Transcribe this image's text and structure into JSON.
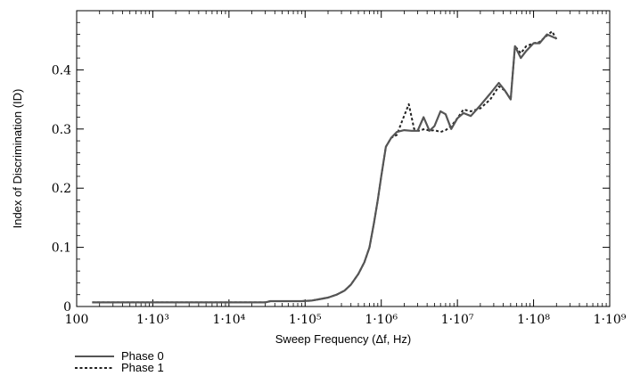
{
  "chart_data": {
    "type": "line",
    "xscale": "log",
    "xlim": [
      100,
      1000000000
    ],
    "ylim": [
      0,
      0.5
    ],
    "xlabel": "Sweep Frequency (Δf,  Hz)",
    "ylabel": "Index of Discrimination (ID)",
    "xticks": [
      {
        "value": 100,
        "label": "100"
      },
      {
        "value": 1000,
        "label": "1·10³"
      },
      {
        "value": 10000,
        "label": "1·10⁴"
      },
      {
        "value": 100000,
        "label": "1·10⁵"
      },
      {
        "value": 1000000,
        "label": "1·10⁶"
      },
      {
        "value": 10000000,
        "label": "1·10⁷"
      },
      {
        "value": 100000000,
        "label": "1·10⁸"
      },
      {
        "value": 1000000000,
        "label": "1·10⁹"
      }
    ],
    "yticks": [
      {
        "value": 0,
        "label": "0"
      },
      {
        "value": 0.1,
        "label": "0.1"
      },
      {
        "value": 0.2,
        "label": "0.2"
      },
      {
        "value": 0.3,
        "label": "0.3"
      },
      {
        "value": 0.4,
        "label": "0.4"
      }
    ],
    "grid": false,
    "legend_position": "bottom-left",
    "series": [
      {
        "name": "Phase 0",
        "style": "solid",
        "color": "#555555",
        "x": [
          160,
          1000,
          10000,
          30000,
          35000,
          90000,
          120000,
          150000,
          200000,
          260000,
          330000,
          400000,
          500000,
          600000,
          700000,
          800000,
          900000,
          1000000,
          1150000,
          1350000,
          1600000,
          2000000,
          2500000,
          3000000,
          3600000,
          4300000,
          5000000,
          6000000,
          7000000,
          8300000,
          10000000,
          12000000,
          15000000,
          20000000,
          27000000,
          35000000,
          42000000,
          50000000,
          57000000,
          68000000,
          80000000,
          100000000,
          120000000,
          150000000,
          200000000
        ],
        "y": [
          0.007,
          0.007,
          0.007,
          0.007,
          0.009,
          0.009,
          0.01,
          0.012,
          0.015,
          0.02,
          0.027,
          0.037,
          0.055,
          0.075,
          0.1,
          0.14,
          0.18,
          0.22,
          0.27,
          0.285,
          0.295,
          0.298,
          0.297,
          0.297,
          0.32,
          0.297,
          0.305,
          0.33,
          0.325,
          0.3,
          0.318,
          0.327,
          0.322,
          0.34,
          0.36,
          0.378,
          0.365,
          0.35,
          0.44,
          0.42,
          0.432,
          0.445,
          0.445,
          0.46,
          0.453
        ]
      },
      {
        "name": "Phase 1",
        "style": "dotted",
        "color": "#222222",
        "x": [
          160,
          1000,
          10000,
          30000,
          35000,
          90000,
          120000,
          150000,
          200000,
          260000,
          330000,
          400000,
          500000,
          600000,
          700000,
          800000,
          900000,
          1000000,
          1150000,
          1350000,
          1600000,
          1900000,
          2300000,
          2700000,
          3100000,
          3700000,
          4300000,
          5000000,
          6000000,
          7000000,
          8300000,
          10000000,
          12000000,
          15000000,
          20000000,
          27000000,
          35000000,
          42000000,
          50000000,
          57000000,
          68000000,
          80000000,
          100000000,
          120000000,
          150000000,
          175000000,
          200000000
        ],
        "y": [
          0.007,
          0.007,
          0.007,
          0.007,
          0.009,
          0.009,
          0.01,
          0.012,
          0.015,
          0.02,
          0.027,
          0.037,
          0.055,
          0.075,
          0.1,
          0.14,
          0.18,
          0.22,
          0.27,
          0.285,
          0.29,
          0.315,
          0.342,
          0.3,
          0.297,
          0.3,
          0.297,
          0.298,
          0.295,
          0.298,
          0.305,
          0.318,
          0.333,
          0.33,
          0.335,
          0.35,
          0.372,
          0.365,
          0.35,
          0.44,
          0.428,
          0.44,
          0.445,
          0.447,
          0.458,
          0.465,
          0.452
        ]
      }
    ]
  }
}
